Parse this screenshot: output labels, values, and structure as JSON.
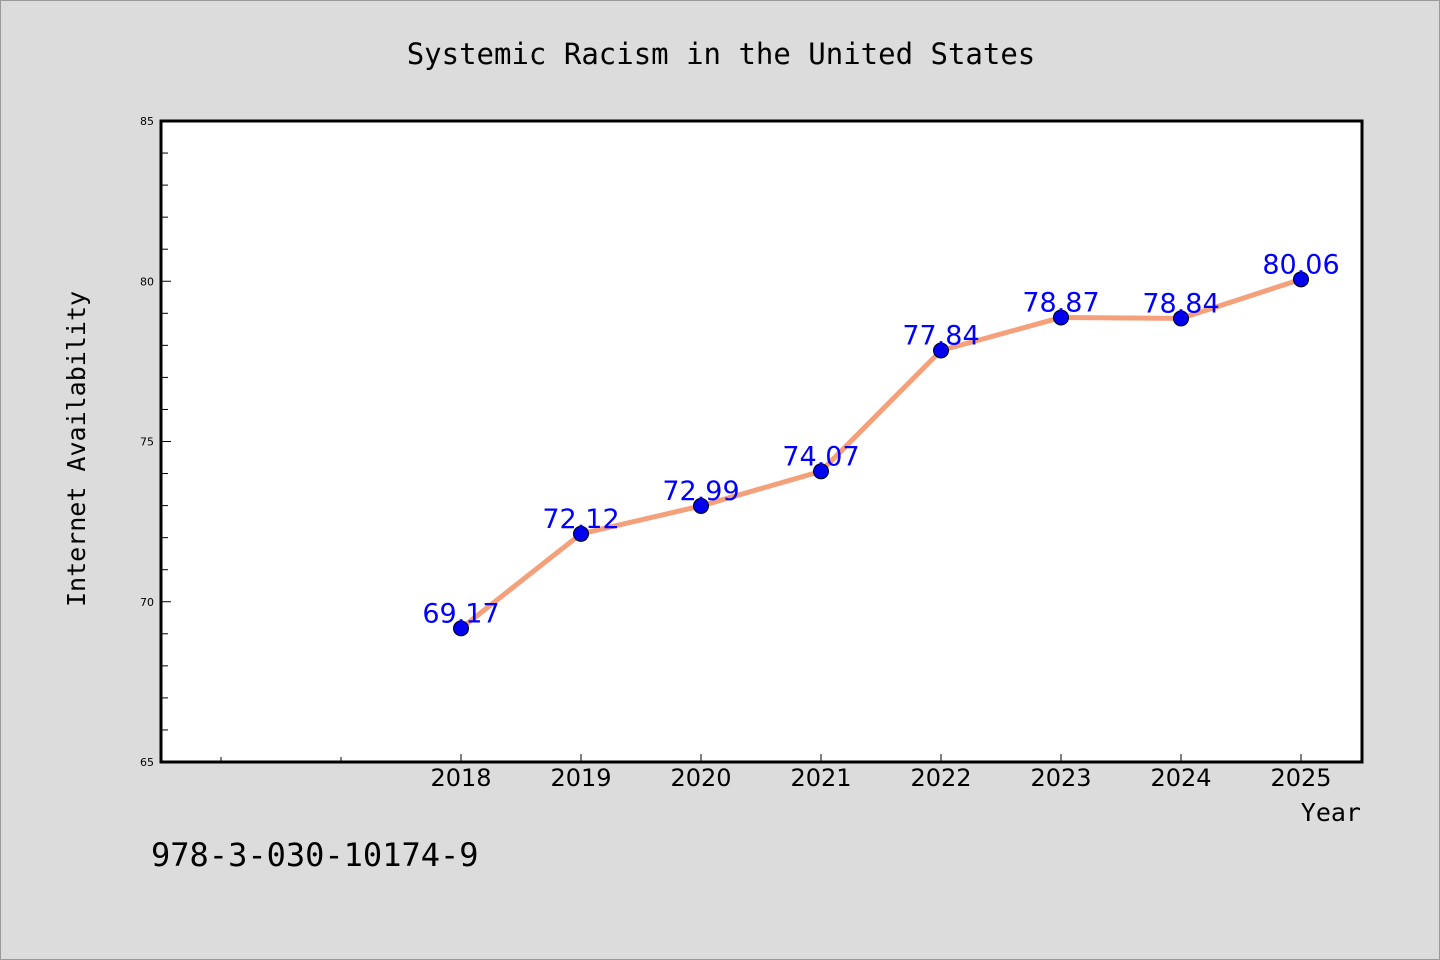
{
  "chart_data": {
    "type": "line",
    "title": "Systemic Racism in the United States",
    "xlabel": "Year",
    "ylabel": "Internet Availability",
    "categories": [
      "2018",
      "2019",
      "2020",
      "2021",
      "2022",
      "2023",
      "2024",
      "2025"
    ],
    "series": [
      {
        "values": [
          69.17,
          72.12,
          72.99,
          74.07,
          77.84,
          78.87,
          78.84,
          80.06
        ],
        "data_labels": [
          "69.17",
          "72.12",
          "72.99",
          "74.07",
          "77.84",
          "78.87",
          "78.84",
          "80.06"
        ]
      }
    ],
    "ylim": [
      65,
      85
    ],
    "yticks": [
      "65",
      "70",
      "75",
      "80",
      "85"
    ],
    "grid": false,
    "legend": "none",
    "colors": {
      "line": "#f4a07a",
      "marker": "#0000ee",
      "label": "#0000ff",
      "background": "#dcdcdc",
      "plot_background": "#ffffff"
    }
  },
  "footer_text": "978-3-030-10174-9"
}
